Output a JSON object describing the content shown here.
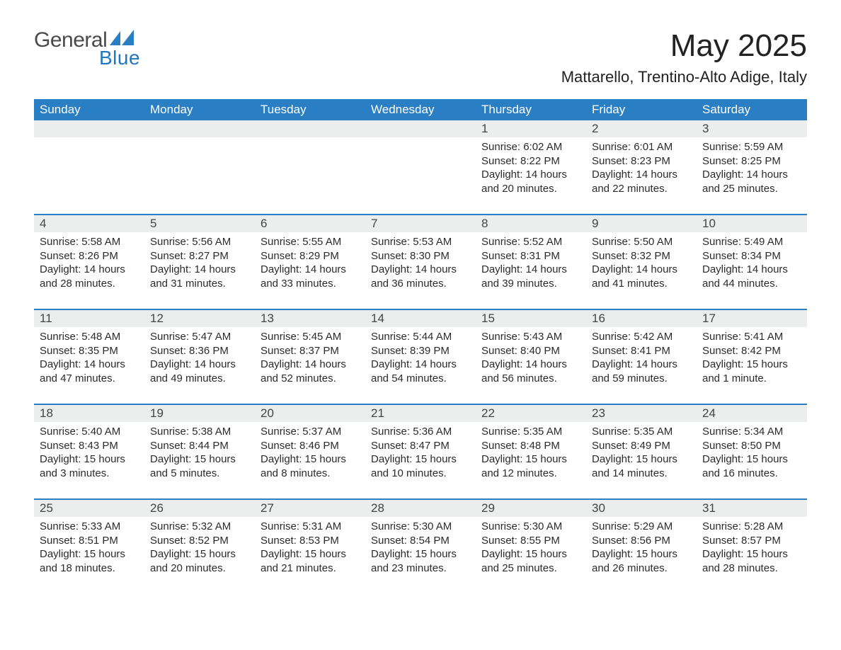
{
  "brand": {
    "general": "General",
    "blue": "Blue"
  },
  "title": "May 2025",
  "location": "Mattarello, Trentino-Alto Adige, Italy",
  "colors": {
    "header_bg": "#2a7ec4",
    "header_text": "#ffffff",
    "daynum_bg": "#eceeee",
    "border": "#2a7ec4",
    "logo_gray": "#4a4a4a",
    "logo_blue": "#1f77c0"
  },
  "day_headers": [
    "Sunday",
    "Monday",
    "Tuesday",
    "Wednesday",
    "Thursday",
    "Friday",
    "Saturday"
  ],
  "weeks": [
    [
      null,
      null,
      null,
      null,
      {
        "n": "1",
        "sr": "6:02 AM",
        "ss": "8:22 PM",
        "dl": "14 hours and 20 minutes."
      },
      {
        "n": "2",
        "sr": "6:01 AM",
        "ss": "8:23 PM",
        "dl": "14 hours and 22 minutes."
      },
      {
        "n": "3",
        "sr": "5:59 AM",
        "ss": "8:25 PM",
        "dl": "14 hours and 25 minutes."
      }
    ],
    [
      {
        "n": "4",
        "sr": "5:58 AM",
        "ss": "8:26 PM",
        "dl": "14 hours and 28 minutes."
      },
      {
        "n": "5",
        "sr": "5:56 AM",
        "ss": "8:27 PM",
        "dl": "14 hours and 31 minutes."
      },
      {
        "n": "6",
        "sr": "5:55 AM",
        "ss": "8:29 PM",
        "dl": "14 hours and 33 minutes."
      },
      {
        "n": "7",
        "sr": "5:53 AM",
        "ss": "8:30 PM",
        "dl": "14 hours and 36 minutes."
      },
      {
        "n": "8",
        "sr": "5:52 AM",
        "ss": "8:31 PM",
        "dl": "14 hours and 39 minutes."
      },
      {
        "n": "9",
        "sr": "5:50 AM",
        "ss": "8:32 PM",
        "dl": "14 hours and 41 minutes."
      },
      {
        "n": "10",
        "sr": "5:49 AM",
        "ss": "8:34 PM",
        "dl": "14 hours and 44 minutes."
      }
    ],
    [
      {
        "n": "11",
        "sr": "5:48 AM",
        "ss": "8:35 PM",
        "dl": "14 hours and 47 minutes."
      },
      {
        "n": "12",
        "sr": "5:47 AM",
        "ss": "8:36 PM",
        "dl": "14 hours and 49 minutes."
      },
      {
        "n": "13",
        "sr": "5:45 AM",
        "ss": "8:37 PM",
        "dl": "14 hours and 52 minutes."
      },
      {
        "n": "14",
        "sr": "5:44 AM",
        "ss": "8:39 PM",
        "dl": "14 hours and 54 minutes."
      },
      {
        "n": "15",
        "sr": "5:43 AM",
        "ss": "8:40 PM",
        "dl": "14 hours and 56 minutes."
      },
      {
        "n": "16",
        "sr": "5:42 AM",
        "ss": "8:41 PM",
        "dl": "14 hours and 59 minutes."
      },
      {
        "n": "17",
        "sr": "5:41 AM",
        "ss": "8:42 PM",
        "dl": "15 hours and 1 minute."
      }
    ],
    [
      {
        "n": "18",
        "sr": "5:40 AM",
        "ss": "8:43 PM",
        "dl": "15 hours and 3 minutes."
      },
      {
        "n": "19",
        "sr": "5:38 AM",
        "ss": "8:44 PM",
        "dl": "15 hours and 5 minutes."
      },
      {
        "n": "20",
        "sr": "5:37 AM",
        "ss": "8:46 PM",
        "dl": "15 hours and 8 minutes."
      },
      {
        "n": "21",
        "sr": "5:36 AM",
        "ss": "8:47 PM",
        "dl": "15 hours and 10 minutes."
      },
      {
        "n": "22",
        "sr": "5:35 AM",
        "ss": "8:48 PM",
        "dl": "15 hours and 12 minutes."
      },
      {
        "n": "23",
        "sr": "5:35 AM",
        "ss": "8:49 PM",
        "dl": "15 hours and 14 minutes."
      },
      {
        "n": "24",
        "sr": "5:34 AM",
        "ss": "8:50 PM",
        "dl": "15 hours and 16 minutes."
      }
    ],
    [
      {
        "n": "25",
        "sr": "5:33 AM",
        "ss": "8:51 PM",
        "dl": "15 hours and 18 minutes."
      },
      {
        "n": "26",
        "sr": "5:32 AM",
        "ss": "8:52 PM",
        "dl": "15 hours and 20 minutes."
      },
      {
        "n": "27",
        "sr": "5:31 AM",
        "ss": "8:53 PM",
        "dl": "15 hours and 21 minutes."
      },
      {
        "n": "28",
        "sr": "5:30 AM",
        "ss": "8:54 PM",
        "dl": "15 hours and 23 minutes."
      },
      {
        "n": "29",
        "sr": "5:30 AM",
        "ss": "8:55 PM",
        "dl": "15 hours and 25 minutes."
      },
      {
        "n": "30",
        "sr": "5:29 AM",
        "ss": "8:56 PM",
        "dl": "15 hours and 26 minutes."
      },
      {
        "n": "31",
        "sr": "5:28 AM",
        "ss": "8:57 PM",
        "dl": "15 hours and 28 minutes."
      }
    ]
  ],
  "labels": {
    "sunrise": "Sunrise: ",
    "sunset": "Sunset: ",
    "daylight": "Daylight: "
  }
}
